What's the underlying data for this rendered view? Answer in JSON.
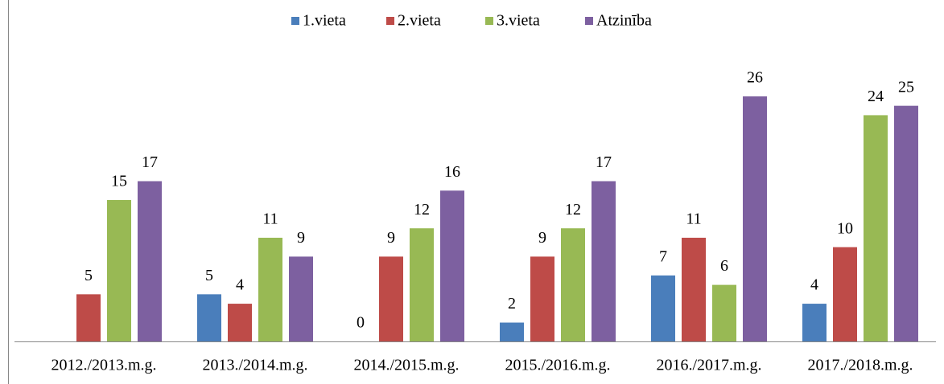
{
  "chart_data": {
    "type": "bar",
    "categories": [
      "2012./2013.m.g.",
      "2013./2014.m.g.",
      "2014./2015.m.g.",
      "2015./2016.m.g.",
      "2016./2017.m.g.",
      "2017./2018.m.g."
    ],
    "series": [
      {
        "name": "1.vieta",
        "color": "#4a7ebb",
        "values": [
          null,
          5,
          0,
          2,
          7,
          4
        ]
      },
      {
        "name": "2.vieta",
        "color": "#be4b48",
        "values": [
          5,
          4,
          9,
          9,
          11,
          10
        ]
      },
      {
        "name": "3.vieta",
        "color": "#98b954",
        "values": [
          15,
          11,
          12,
          12,
          6,
          24
        ]
      },
      {
        "name": "Atzinība",
        "color": "#7d60a0",
        "values": [
          17,
          9,
          16,
          17,
          26,
          25
        ]
      }
    ],
    "ylim": [
      0,
      30
    ],
    "legend": "top",
    "grid": false
  }
}
